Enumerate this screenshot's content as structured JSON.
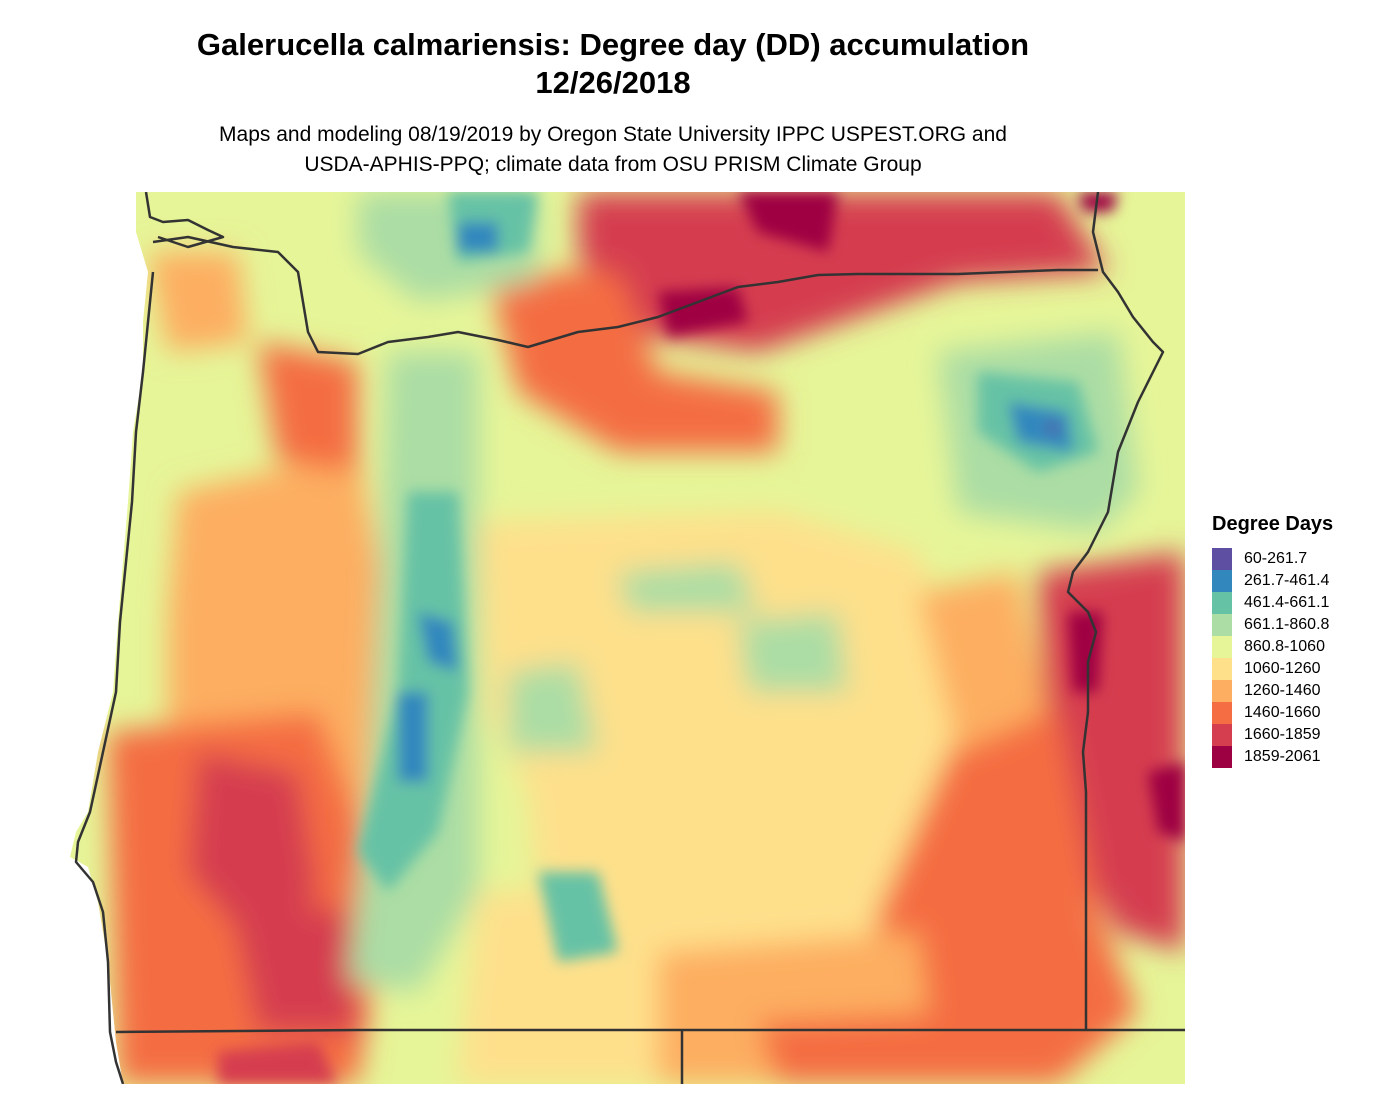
{
  "title_line1": "Galerucella calmariensis: Degree day (DD) accumulation",
  "title_line2": "12/26/2018",
  "subtitle_line1": "Maps and modeling 08/19/2019 by Oregon State University IPPC USPEST.ORG and",
  "subtitle_line2": "USDA-APHIS-PPQ; climate data from OSU PRISM Climate Group",
  "legend": {
    "title": "Degree Days",
    "items": [
      {
        "label": "60-261.7",
        "color": "#5e4fa2"
      },
      {
        "label": "261.7-461.4",
        "color": "#3288bd"
      },
      {
        "label": "461.4-661.1",
        "color": "#66c2a5"
      },
      {
        "label": "661.1-860.8",
        "color": "#abdda4"
      },
      {
        "label": "860.8-1060",
        "color": "#e6f598"
      },
      {
        "label": "1060-1260",
        "color": "#fee08b"
      },
      {
        "label": "1260-1460",
        "color": "#fdae61"
      },
      {
        "label": "1460-1660",
        "color": "#f46d43"
      },
      {
        "label": "1660-1859",
        "color": "#d53e4f"
      },
      {
        "label": "1859-2061",
        "color": "#9e0142"
      }
    ]
  },
  "colors": {
    "ocean": "#ffffff",
    "border_line": "#333333"
  }
}
